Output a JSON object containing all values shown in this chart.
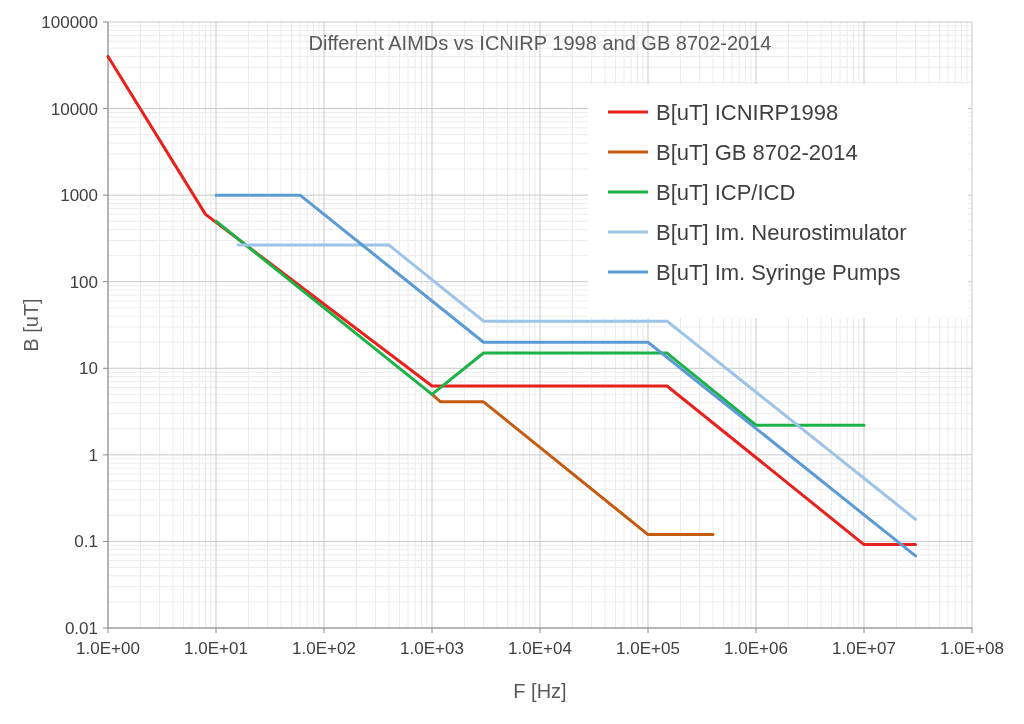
{
  "chart_data": {
    "type": "line",
    "title": "Different AIMDs vs ICNIRP 1998 and GB 8702-2014",
    "xlabel": "F [Hz]",
    "ylabel": "B [uT]",
    "log": "xy",
    "grid": true,
    "legend": "top right",
    "line_style": "solid",
    "marker": "none",
    "xlim": [
      1,
      100000000
    ],
    "xticks": [
      {
        "value": 1,
        "label": "1.0E+00"
      },
      {
        "value": 10,
        "label": "1.0E+01"
      },
      {
        "value": 100,
        "label": "1.0E+02"
      },
      {
        "value": 1000,
        "label": "1.0E+03"
      },
      {
        "value": 10000,
        "label": "1.0E+04"
      },
      {
        "value": 100000,
        "label": "1.0E+05"
      },
      {
        "value": 1000000,
        "label": "1.0E+06"
      },
      {
        "value": 10000000,
        "label": "1.0E+07"
      },
      {
        "value": 100000000,
        "label": "1.0E+08"
      }
    ],
    "ylim": [
      0.01,
      100000
    ],
    "yticks": [
      0.01,
      0.1,
      1,
      10,
      100,
      1000,
      10000,
      100000
    ],
    "series": [
      {
        "name": "B[uT] ICNIRP1998",
        "color": "#e8211d",
        "x": [
          1,
          8,
          1000,
          150000,
          10000000,
          30000000
        ],
        "values": [
          40000,
          600,
          6.25,
          6.25,
          0.092,
          0.092
        ]
      },
      {
        "name": "B[uT] GB 8702-2014",
        "color": "#c55a11",
        "x": [
          1000,
          1200,
          3000,
          100000,
          400000
        ],
        "values": [
          5,
          4.1,
          4.1,
          0.12,
          0.12
        ]
      },
      {
        "name": "B[uT] ICP/ICD",
        "color": "#1db245",
        "x": [
          10,
          1000,
          3000,
          150000,
          1000000,
          10000000
        ],
        "values": [
          500,
          5,
          15,
          15,
          2.2,
          2.2
        ]
      },
      {
        "name": "B[uT] Im. Neurostimulator",
        "color": "#9dc3e6",
        "x": [
          16,
          400,
          3000,
          150000,
          30000000
        ],
        "values": [
          265,
          265,
          35,
          35,
          0.18
        ]
      },
      {
        "name": "B[uT] Im. Syringe Pumps",
        "color": "#5b9bd5",
        "x": [
          10,
          60,
          3000,
          100000,
          30000000
        ],
        "values": [
          1000,
          1000,
          20,
          20,
          0.068
        ]
      }
    ]
  }
}
